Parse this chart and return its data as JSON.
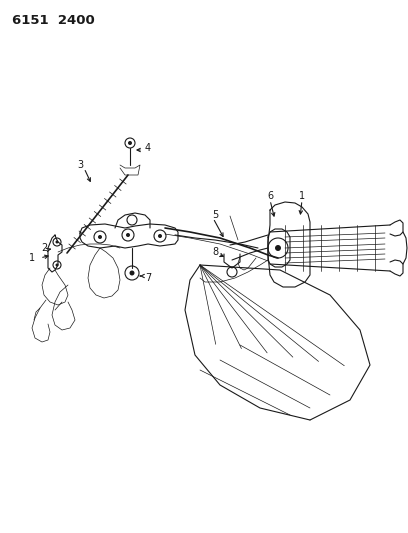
{
  "title": "6151  2400",
  "bg_color": "#ffffff",
  "line_color": "#1a1a1a",
  "fig_width": 4.08,
  "fig_height": 5.33,
  "dpi": 100,
  "label_fontsize": 6.5,
  "title_fontsize": 9.5
}
